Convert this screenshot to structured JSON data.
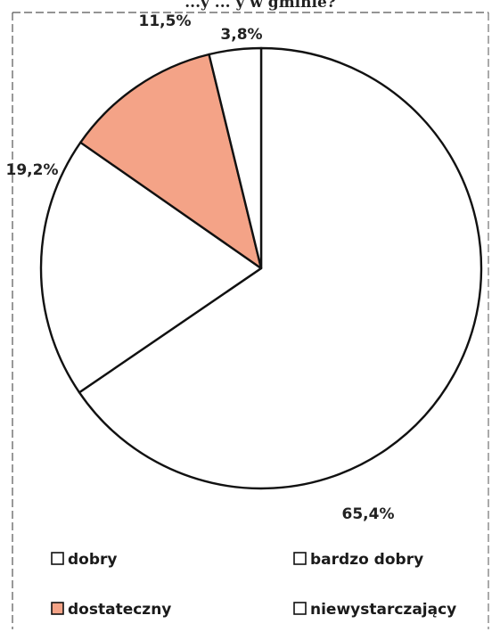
{
  "chart_data": {
    "type": "pie",
    "title": "",
    "categories": [
      "dobry",
      "bardzo dobry",
      "dostateczny",
      "niewystarczający"
    ],
    "values": [
      65.4,
      19.2,
      11.5,
      3.8
    ],
    "labels": [
      "65,4%",
      "19,2%",
      "11,5%",
      "3,8%"
    ],
    "colors": [
      "#ffffff",
      "#ffffff",
      "#f4a387",
      "#ffffff"
    ],
    "start_angle_deg": 0,
    "direction": "clockwise",
    "legend_position": "bottom"
  },
  "title_fragment": "...y ... y w gminie?"
}
